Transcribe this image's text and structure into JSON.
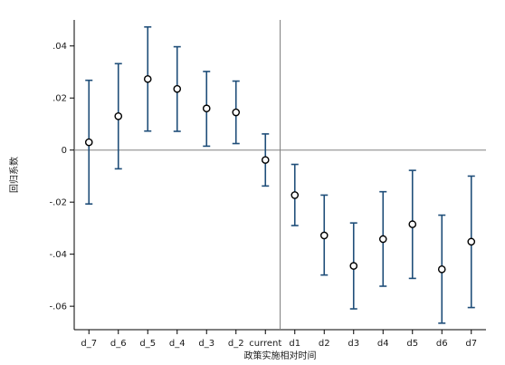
{
  "chart_data": {
    "type": "scatter",
    "title": "",
    "xlabel": "政策实施相对时间",
    "ylabel": "回归系数",
    "categories": [
      "d_7",
      "d_6",
      "d_5",
      "d_4",
      "d_3",
      "d_2",
      "current",
      "d1",
      "d2",
      "d3",
      "d4",
      "d5",
      "d6",
      "d7"
    ],
    "series": [
      {
        "estimate": [
          0.003,
          0.013,
          0.0273,
          0.0235,
          0.016,
          0.0145,
          -0.0038,
          -0.0173,
          -0.0328,
          -0.0445,
          -0.0342,
          -0.0285,
          -0.0458,
          -0.0352
        ],
        "ci_low": [
          -0.0207,
          -0.0072,
          0.0073,
          0.0072,
          0.0015,
          0.0025,
          -0.0138,
          -0.029,
          -0.048,
          -0.061,
          -0.0523,
          -0.0493,
          -0.0665,
          -0.0605
        ],
        "ci_high": [
          0.0268,
          0.0332,
          0.0473,
          0.0397,
          0.0302,
          0.0265,
          0.0062,
          -0.0055,
          -0.0173,
          -0.028,
          -0.016,
          -0.0078,
          -0.025,
          -0.01
        ]
      }
    ],
    "ylim": [
      -0.069,
      0.05
    ],
    "yticks": [
      0.04,
      0.02,
      0,
      -0.02,
      -0.04,
      -0.06
    ],
    "ytick_labels": [
      ".04",
      ".02",
      "0",
      "-.02",
      "-.04",
      "-.06"
    ],
    "reference_lines": {
      "horizontal_y": 0,
      "vertical_category": "current"
    },
    "colors": {
      "errorbar": "#1f4e79",
      "marker": "#000000",
      "axis": "#000000",
      "refline": "#808080"
    },
    "grid": false,
    "legend": "none"
  }
}
